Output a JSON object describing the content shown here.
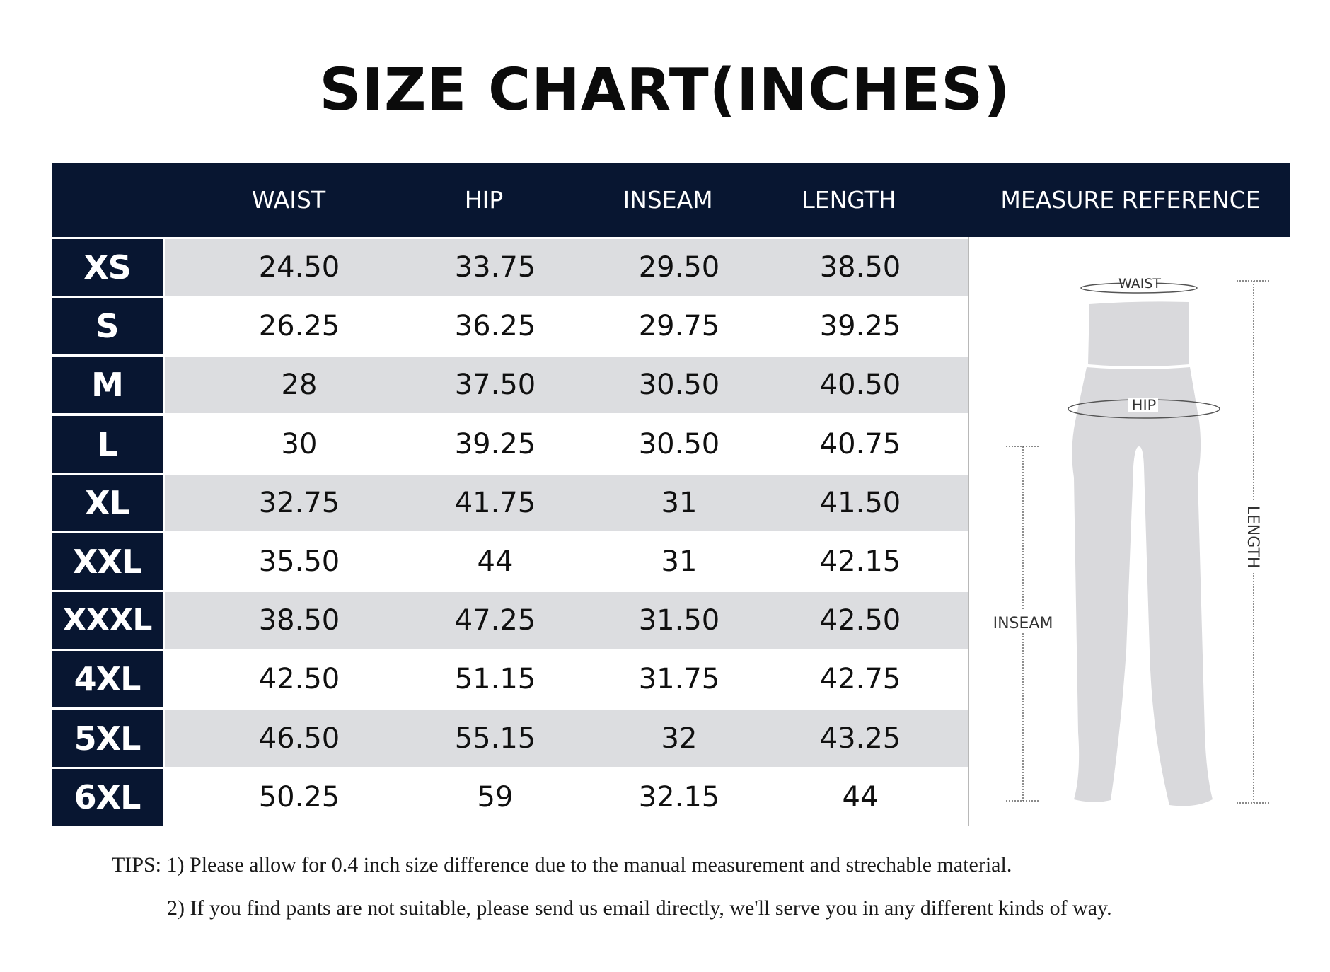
{
  "title": "SIZE CHART(INCHES)",
  "header": {
    "columns": [
      "WAIST",
      "HIP",
      "INSEAM",
      "LENGTH"
    ],
    "reference_label": "MEASURE REFERENCE"
  },
  "rows": [
    {
      "size": "XS",
      "waist": "24.50",
      "hip": "33.75",
      "inseam": "29.50",
      "length": "38.50"
    },
    {
      "size": "S",
      "waist": "26.25",
      "hip": "36.25",
      "inseam": "29.75",
      "length": "39.25"
    },
    {
      "size": "M",
      "waist": "28",
      "hip": "37.50",
      "inseam": "30.50",
      "length": "40.50"
    },
    {
      "size": "L",
      "waist": "30",
      "hip": "39.25",
      "inseam": "30.50",
      "length": "40.75"
    },
    {
      "size": "XL",
      "waist": "32.75",
      "hip": "41.75",
      "inseam": "31",
      "length": "41.50"
    },
    {
      "size": "XXL",
      "waist": "35.50",
      "hip": "44",
      "inseam": "31",
      "length": "42.15"
    },
    {
      "size": "XXXL",
      "waist": "38.50",
      "hip": "47.25",
      "inseam": "31.50",
      "length": "42.50"
    },
    {
      "size": "4XL",
      "waist": "42.50",
      "hip": "51.15",
      "inseam": "31.75",
      "length": "42.75"
    },
    {
      "size": "5XL",
      "waist": "46.50",
      "hip": "55.15",
      "inseam": "32",
      "length": "43.25"
    },
    {
      "size": "6XL",
      "waist": "50.25",
      "hip": "59",
      "inseam": "32.15",
      "length": "44"
    }
  ],
  "diagram": {
    "waist_label": "WAIST",
    "hip_label": "HIP",
    "inseam_label": "INSEAM",
    "length_label": "LENGTH",
    "pants_color": "#d9d9dc"
  },
  "tips": {
    "line1": "TIPS: 1) Please allow for 0.4 inch size difference due to the manual measurement and strechable material.",
    "line2": "2)  If you find pants are not suitable, please send us email directly, we'll serve you in any different kinds of way."
  },
  "colors": {
    "navy": "#081631",
    "shade": "#dcdde0"
  }
}
